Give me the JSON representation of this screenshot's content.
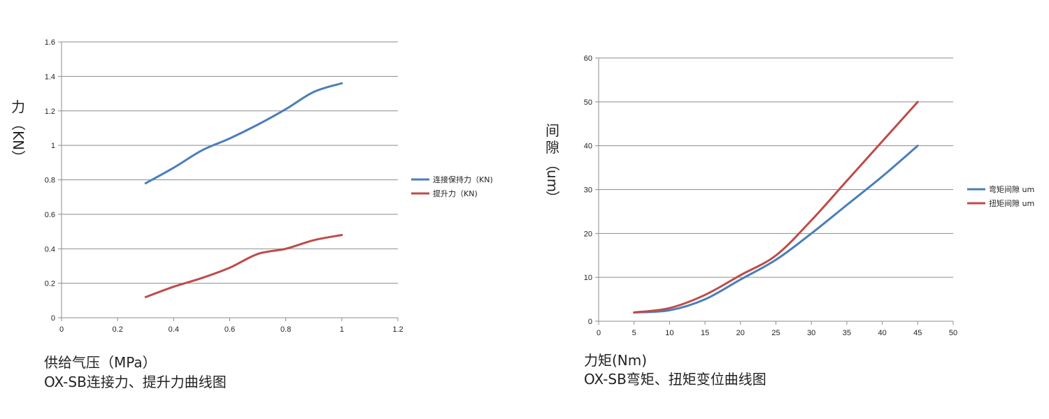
{
  "chart_data": [
    {
      "type": "line",
      "x": [
        0.3,
        0.4,
        0.5,
        0.6,
        0.7,
        0.8,
        0.9,
        1.0
      ],
      "series": [
        {
          "name": "连接保持力（KN)",
          "color": "#4a7ebb",
          "values": [
            0.78,
            0.87,
            0.97,
            1.04,
            1.12,
            1.21,
            1.31,
            1.36
          ]
        },
        {
          "name": "提升力（KN)",
          "color": "#be4b48",
          "values": [
            0.12,
            0.18,
            0.23,
            0.29,
            0.37,
            0.4,
            0.45,
            0.48
          ]
        }
      ],
      "xlim": [
        0,
        1.2
      ],
      "ylim": [
        0,
        1.6
      ],
      "xticks": [
        "0",
        "0.2",
        "0.4",
        "0.6",
        "0.8",
        "1",
        "1.2"
      ],
      "yticks": [
        "0",
        "0.2",
        "0.4",
        "0.6",
        "0.8",
        "1",
        "1.2",
        "1.4",
        "1.6"
      ],
      "ylabel_lines": [
        "力",
        "（",
        "KN",
        "）"
      ],
      "xlabel": "供给气压（MPa）",
      "title": "OX-SB连接力、提升力曲线图",
      "grid": true,
      "legend": "right"
    },
    {
      "type": "line",
      "x": [
        5,
        10,
        15,
        20,
        25,
        30,
        35,
        40,
        45
      ],
      "series": [
        {
          "name": "弯矩间隙 um",
          "color": "#4a7ebb",
          "values": [
            2,
            2.5,
            5,
            9.5,
            14,
            20,
            26.5,
            33,
            40
          ]
        },
        {
          "name": "扭矩间隙 um",
          "color": "#be4b48",
          "values": [
            2,
            3,
            6,
            10.5,
            15,
            23,
            32,
            41,
            50
          ]
        }
      ],
      "xlim": [
        0,
        50
      ],
      "ylim": [
        0,
        60
      ],
      "xticks": [
        "0",
        "5",
        "10",
        "15",
        "20",
        "25",
        "30",
        "35",
        "40",
        "45",
        "50"
      ],
      "yticks": [
        "0",
        "10",
        "20",
        "30",
        "40",
        "50",
        "60"
      ],
      "ylabel_lines": [
        "间",
        "隙",
        "（",
        "um",
        "）"
      ],
      "xlabel": "力矩(Nm)",
      "title": "OX-SB弯矩、扭矩变位曲线图",
      "grid": true,
      "legend": "right"
    }
  ]
}
